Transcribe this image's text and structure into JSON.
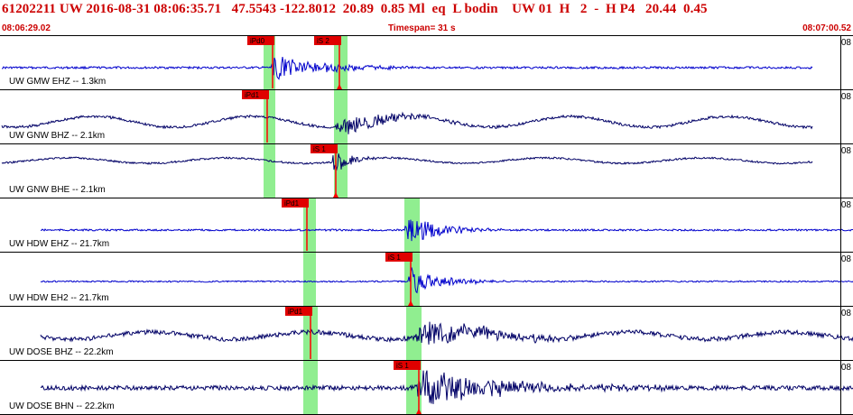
{
  "header": {
    "title": "61202211 UW 2016-08-31 08:06:35.71   47.5543 -122.8012  20.89  0.85 Ml  eq  L bodin    UW 01  H   2  -  H P4   20.44  0.45",
    "start_time": "08:06:29.02",
    "timespan": "Timespan=  31 s",
    "end_time": "08:07:00.52"
  },
  "channels": [
    {
      "label": "UW GMW EHZ -- 1.3km",
      "scale": "08",
      "p_label": "iPd0",
      "s_label": "iS 2",
      "color": "#0000cc"
    },
    {
      "label": "UW GNW BHZ -- 2.1km",
      "scale": "08",
      "p_label": "iPd1",
      "s_label": "",
      "color": "#000066"
    },
    {
      "label": "UW GNW BHE -- 2.1km",
      "scale": "08",
      "p_label": "",
      "s_label": "iS 1",
      "color": "#000066"
    },
    {
      "label": "UW HDW EHZ -- 21.7km",
      "scale": "08",
      "p_label": "iPd1",
      "s_label": "",
      "color": "#0000cc"
    },
    {
      "label": "UW HDW EH2 -- 21.7km",
      "scale": "08",
      "p_label": "",
      "s_label": "iS 1",
      "color": "#0000cc"
    },
    {
      "label": "UW DOSE BHZ -- 22.2km",
      "scale": "08",
      "p_label": "iPd1",
      "s_label": "",
      "color": "#000066"
    },
    {
      "label": "UW DOSE BHN -- 22.2km",
      "scale": "08",
      "p_label": "",
      "s_label": "iS 1",
      "color": "#000066"
    }
  ],
  "colors": {
    "pick_box": "#e00000",
    "pick_line": "#ff0000",
    "window": "#90ee90",
    "header_text": "#cc0000"
  }
}
